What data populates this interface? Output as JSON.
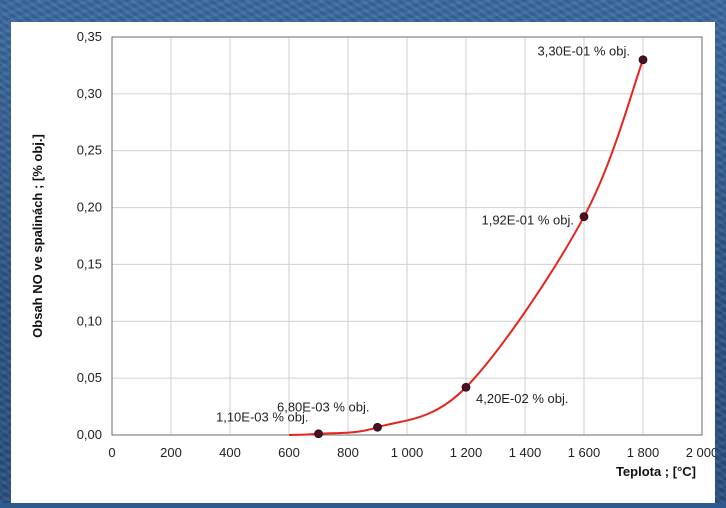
{
  "chart_data": {
    "type": "line",
    "xlabel": "Teplota ; [°C]",
    "ylabel": "Obsah NO ve spalinách ; [% obj.]",
    "xlim": [
      0,
      2000
    ],
    "ylim": [
      0,
      0.35
    ],
    "x_ticks": [
      0,
      200,
      400,
      600,
      800,
      1000,
      1200,
      1400,
      1600,
      1800,
      2000
    ],
    "x_tick_labels": [
      "0",
      "200",
      "400",
      "600",
      "800",
      "1 000",
      "1 200",
      "1 400",
      "1 600",
      "1 800",
      "2 000"
    ],
    "y_ticks": [
      0,
      0.05,
      0.1,
      0.15,
      0.2,
      0.25,
      0.3,
      0.35
    ],
    "y_tick_labels": [
      "0,00",
      "0,05",
      "0,10",
      "0,15",
      "0,20",
      "0,25",
      "0,30",
      "0,35"
    ],
    "grid": true,
    "series": [
      {
        "color": "#e8231e",
        "curve_x": [
          600,
          700,
          900,
          1200,
          1600,
          1800
        ],
        "curve_y": [
          0.0,
          0.0011,
          0.0068,
          0.042,
          0.192,
          0.33
        ],
        "points": [
          {
            "x": 700,
            "y": 0.0011,
            "label": "1,10E-03 % obj."
          },
          {
            "x": 900,
            "y": 0.0068,
            "label": "6,80E-03 % obj."
          },
          {
            "x": 1200,
            "y": 0.042,
            "label": "4,20E-02 % obj."
          },
          {
            "x": 1600,
            "y": 0.192,
            "label": "1,92E-01 % obj."
          },
          {
            "x": 1800,
            "y": 0.33,
            "label": "3,30E-01 % obj."
          }
        ]
      }
    ],
    "marker_color": "#4a1020"
  }
}
